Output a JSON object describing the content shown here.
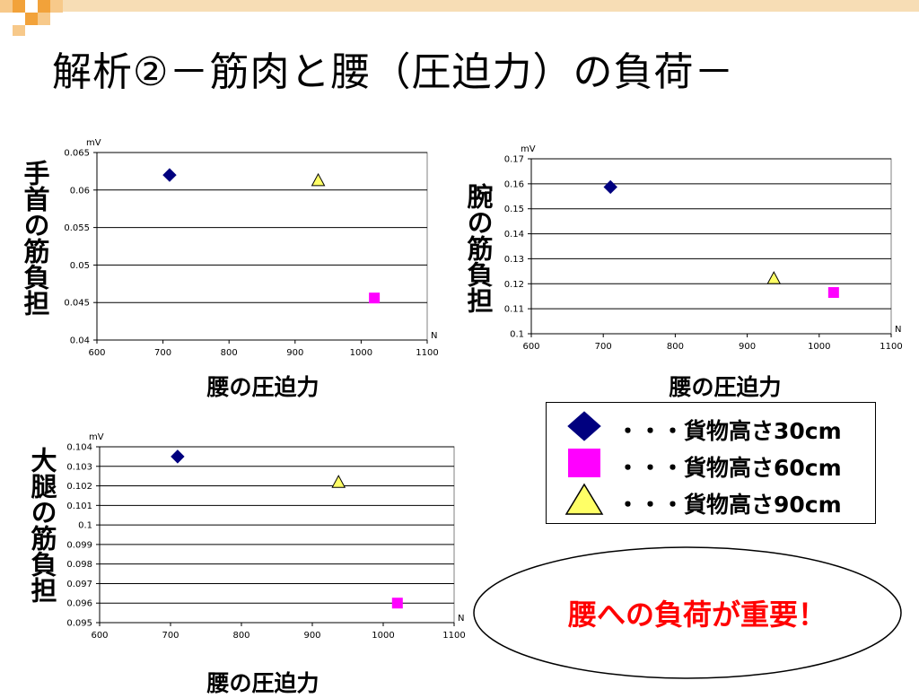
{
  "slide": {
    "title": "解析②－筋肉と腰（圧迫力）の負荷－",
    "colors": {
      "deco_dark": "#F2A23A",
      "deco_light": "#F7C98A"
    }
  },
  "series_styles": [
    {
      "name": "・・・貨物高さ30cm",
      "marker": "diamond",
      "color": "#00007F",
      "stroke": "#00007F"
    },
    {
      "name": "・・・貨物高さ60cm",
      "marker": "square",
      "color": "#FF00FF",
      "stroke": "#FF00FF"
    },
    {
      "name": "・・・貨物高さ90cm",
      "marker": "triangle",
      "color": "#FFFF66",
      "stroke": "#000000"
    }
  ],
  "chart_data": [
    {
      "type": "scatter",
      "ylabel": "手首の筋負担",
      "xlabel": "腰の圧迫力",
      "y_unit": "mV",
      "x_unit": "N",
      "xlim": [
        600,
        1100
      ],
      "ylim": [
        0.04,
        0.065
      ],
      "xticks": [
        "600",
        "700",
        "800",
        "900",
        "1000",
        "1100"
      ],
      "yticks": [
        "0.04",
        "0.045",
        "0.05",
        "0.055",
        "0.06",
        "0.065"
      ],
      "grid": true,
      "points": [
        {
          "x": 710,
          "y": 0.062
        },
        {
          "x": 1020,
          "y": 0.0456
        },
        {
          "x": 935,
          "y": 0.0613
        }
      ]
    },
    {
      "type": "scatter",
      "ylabel": "腕の筋負担",
      "xlabel": "腰の圧迫力",
      "y_unit": "mV",
      "x_unit": "N",
      "xlim": [
        600,
        1100
      ],
      "ylim": [
        0.1,
        0.17
      ],
      "xticks": [
        "600",
        "700",
        "800",
        "900",
        "1000",
        "1100"
      ],
      "yticks": [
        "0.1",
        "0.11",
        "0.12",
        "0.13",
        "0.14",
        "0.15",
        "0.16",
        "0.17"
      ],
      "grid": true,
      "points": [
        {
          "x": 710,
          "y": 0.1587
        },
        {
          "x": 1020,
          "y": 0.1165
        },
        {
          "x": 937,
          "y": 0.1222
        }
      ]
    },
    {
      "type": "scatter",
      "ylabel": "大腿の筋負担",
      "xlabel": "腰の圧迫力",
      "y_unit": "mV",
      "x_unit": "N",
      "xlim": [
        600,
        1100
      ],
      "ylim": [
        0.095,
        0.104
      ],
      "xticks": [
        "600",
        "700",
        "800",
        "900",
        "1000",
        "1100"
      ],
      "yticks": [
        "0.095",
        "0.096",
        "0.097",
        "0.098",
        "0.099",
        "0.1",
        "0.101",
        "0.102",
        "0.103",
        "0.104"
      ],
      "grid": true,
      "points": [
        {
          "x": 710,
          "y": 0.1035
        },
        {
          "x": 1020,
          "y": 0.096
        },
        {
          "x": 937,
          "y": 0.1022
        }
      ]
    }
  ],
  "legend": {
    "items": [
      "・・・貨物高さ30cm",
      "・・・貨物高さ60cm",
      "・・・貨物高さ90cm"
    ]
  },
  "callout": {
    "text": "腰への負荷が重要！",
    "color": "#FF0000"
  }
}
